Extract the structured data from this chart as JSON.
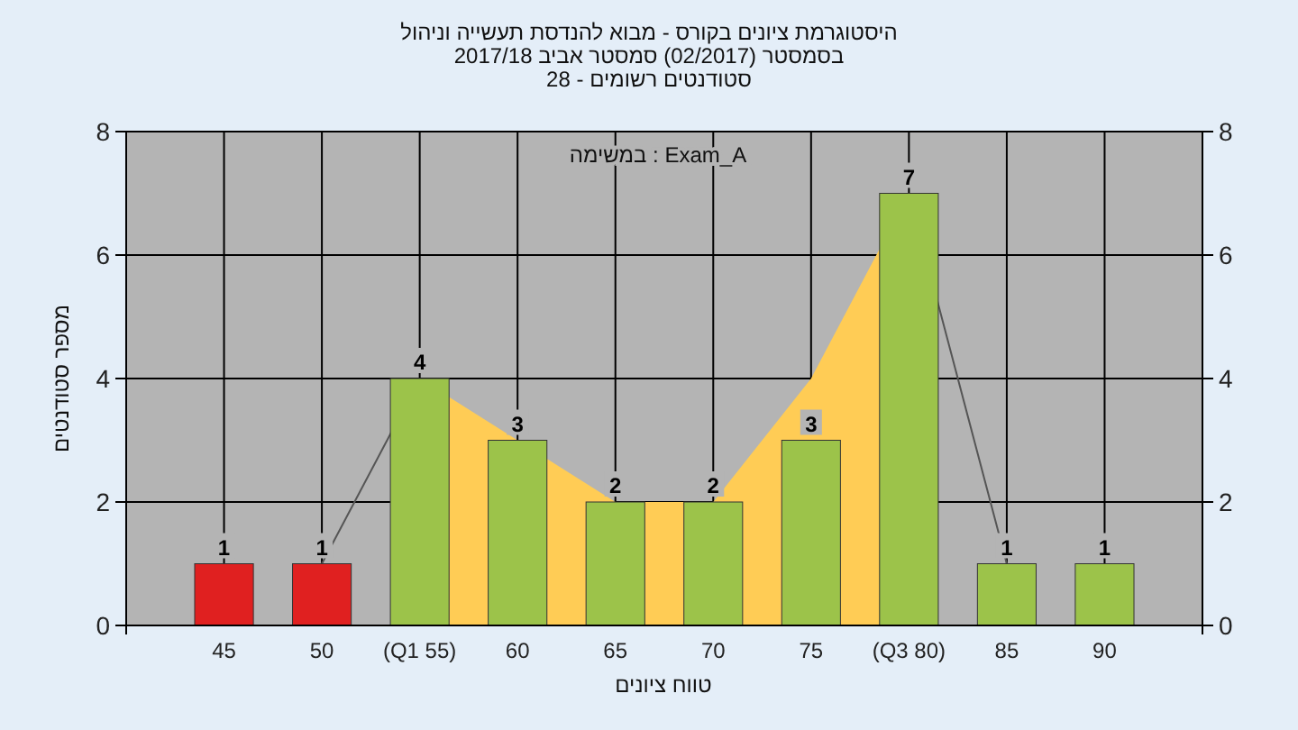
{
  "chart_data": {
    "type": "bar",
    "title": "היסטוגרמת ציונים בקורס - מבוא להנדסת תעשייה וניהול",
    "subtitle": "בסמסטר  (02/2017)  סמסטר אביב 2017/18",
    "annotations": [
      "סטודנטים רשומים - 28",
      "במשימה : Exam_A"
    ],
    "xlabel": "טווח ציונים",
    "ylabel": "מספר סטודנטים",
    "categories": [
      "45",
      "50",
      "(Q1 55)",
      "60",
      "65",
      "70",
      "75",
      "(Q3 80)",
      "85",
      "90"
    ],
    "series": [
      {
        "type": "line",
        "color": "#555555",
        "values": [
          null,
          1,
          4,
          null,
          null,
          null,
          null,
          7,
          1,
          null
        ]
      },
      {
        "type": "area",
        "color": "#ffcc55",
        "values": [
          null,
          null,
          4,
          3,
          2,
          2,
          4,
          7,
          null,
          null
        ]
      },
      {
        "values": [
          1,
          1,
          4,
          3,
          2,
          2,
          3,
          7,
          1,
          1
        ],
        "value_labels": [
          "1",
          "1",
          "4",
          "3",
          "2",
          "2",
          "3",
          "7",
          "1",
          "1"
        ],
        "colors": [
          "#e02020",
          "#e02020",
          "#9cc34a",
          "#9cc34a",
          "#9cc34a",
          "#9cc34a",
          "#9cc34a",
          "#9cc34a",
          "#9cc34a",
          "#9cc34a"
        ]
      }
    ],
    "grid": true,
    "ylim": [
      0,
      8
    ],
    "yticks": [
      0,
      2,
      4,
      6,
      8
    ],
    "y2lim": [
      0,
      8
    ],
    "y2ticks": [
      0,
      2,
      4,
      6,
      8
    ]
  }
}
